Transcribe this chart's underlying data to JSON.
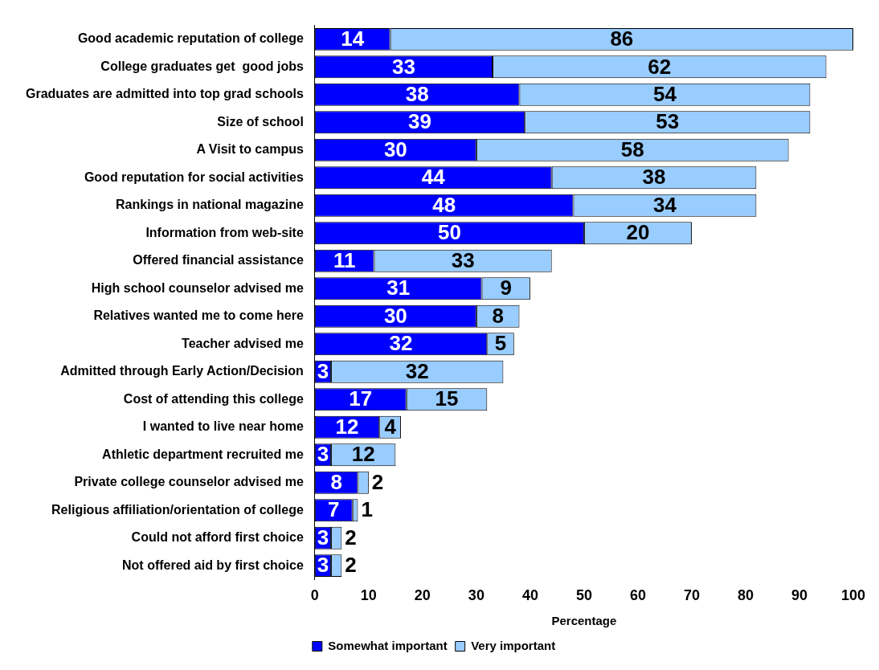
{
  "chart_data": {
    "type": "bar",
    "orientation": "horizontal",
    "stacked": true,
    "xlabel": "Percentage",
    "categories": [
      "Good academic reputation of college",
      "College graduates get  good jobs",
      "Graduates are admitted into top grad schools",
      "Size of school",
      "A Visit to campus",
      "Good reputation for social activities",
      "Rankings in national magazine",
      "Information from web-site",
      "Offered financial assistance",
      "High school counselor advised me",
      "Relatives wanted me to come here",
      "Teacher advised me",
      "Admitted through Early Action/Decision",
      "Cost of attending this college",
      "I wanted to live near home",
      "Athletic department recruited me",
      "Private college counselor advised me",
      "Religious affiliation/orientation of college",
      "Could not afford first choice",
      "Not offered aid by first choice"
    ],
    "series": [
      {
        "name": "Somewhat important",
        "color": "#0000ff",
        "values": [
          14,
          33,
          38,
          39,
          30,
          44,
          48,
          50,
          11,
          31,
          30,
          32,
          3,
          17,
          12,
          3,
          8,
          7,
          3,
          3
        ]
      },
      {
        "name": "Very important",
        "color": "#99ccff",
        "values": [
          86,
          62,
          54,
          53,
          58,
          38,
          34,
          20,
          33,
          9,
          8,
          5,
          32,
          15,
          4,
          12,
          2,
          1,
          2,
          2
        ]
      }
    ],
    "xlim": [
      0,
      100
    ],
    "xticks": [
      0,
      10,
      20,
      30,
      40,
      50,
      60,
      70,
      80,
      90,
      100
    ],
    "data_labels": true,
    "grid": false,
    "legend": "bottom"
  }
}
